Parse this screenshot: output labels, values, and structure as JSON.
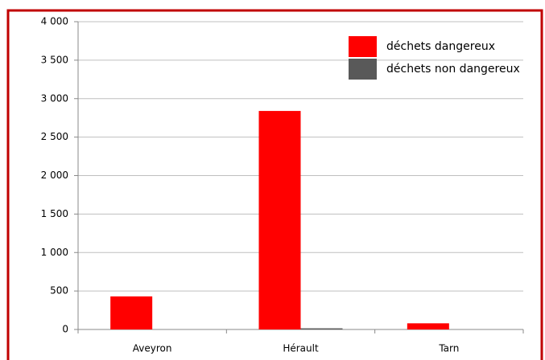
{
  "chart_data": {
    "type": "bar",
    "categories": [
      "Aveyron",
      "Hérault",
      "Tarn"
    ],
    "series": [
      {
        "name": "déchets dangereux",
        "color": "#ff0000",
        "values": [
          430,
          2840,
          80
        ]
      },
      {
        "name": "déchets non dangereux",
        "color": "#595959",
        "values": [
          0,
          15,
          0
        ]
      }
    ],
    "ylim": [
      0,
      4000
    ],
    "yticks": [
      0,
      500,
      {
        "value": 1000,
        "label": "1 000"
      },
      {
        "value": 1500,
        "label": "1 500"
      },
      {
        "value": 2000,
        "label": "2 000"
      },
      {
        "value": 2500,
        "label": "2 500"
      },
      {
        "value": 3000,
        "label": "3 000"
      },
      {
        "value": 3500,
        "label": "3 500"
      },
      {
        "value": 4000,
        "label": "4 000"
      }
    ],
    "grid": true,
    "legend": "top-right"
  }
}
